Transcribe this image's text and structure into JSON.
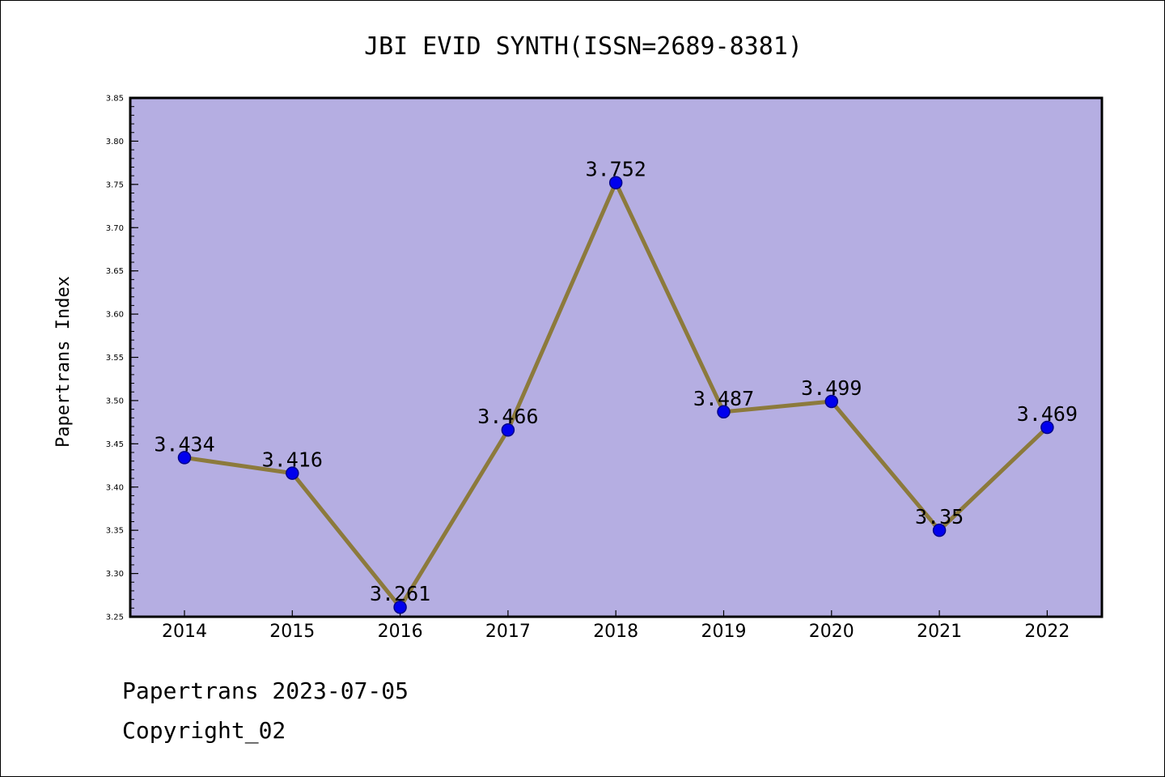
{
  "chart_data": {
    "type": "line",
    "title": "JBI EVID SYNTH(ISSN=2689-8381)",
    "xlabel": "",
    "ylabel": "Papertrans Index",
    "categories": [
      "2014",
      "2015",
      "2016",
      "2017",
      "2018",
      "2019",
      "2020",
      "2021",
      "2022"
    ],
    "values": [
      3.434,
      3.416,
      3.261,
      3.466,
      3.752,
      3.487,
      3.499,
      3.35,
      3.469
    ],
    "data_labels": [
      "3.434",
      "3.416",
      "3.261",
      "3.466",
      "3.752",
      "3.487",
      "3.499",
      "3.35",
      "3.469"
    ],
    "ylim": [
      3.25,
      3.85
    ],
    "yticks": [
      "3.25",
      "3.30",
      "3.35",
      "3.40",
      "3.45",
      "3.50",
      "3.55",
      "3.60",
      "3.65",
      "3.70",
      "3.75",
      "3.80",
      "3.85"
    ],
    "grid": false,
    "colors": {
      "plot_background": "#b5aee2",
      "line": "#8c7a3c",
      "marker": "#0000ee",
      "marker_edge": "#00008b"
    }
  },
  "footer": {
    "line1": "Papertrans 2023-07-05",
    "line2": "Copyright_02"
  }
}
